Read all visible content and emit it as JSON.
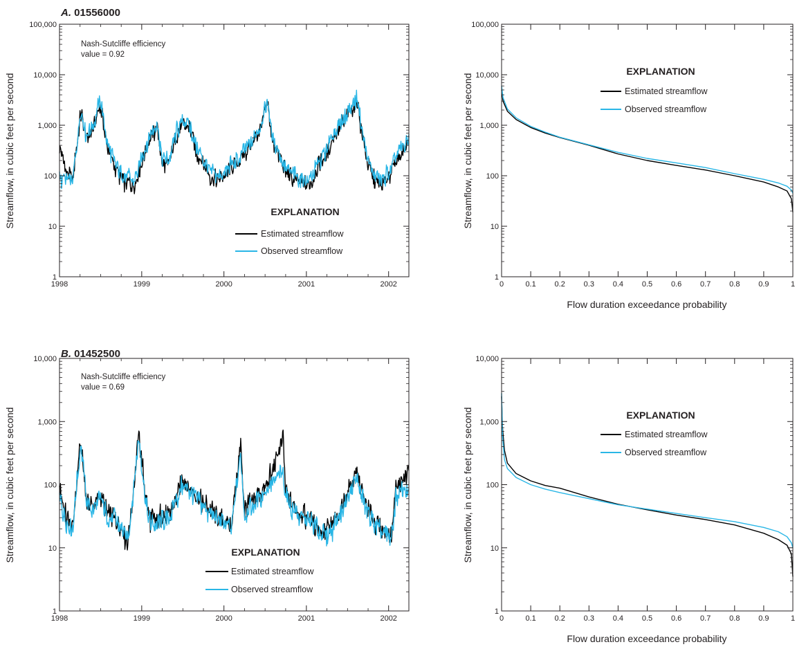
{
  "colors": {
    "estimated": "#000000",
    "observed": "#29b6e6",
    "axis": "#231f20"
  },
  "panels": [
    {
      "id": "A",
      "label_letter": "A.",
      "label_text": "01556000",
      "nse_line1": "Nash-Sutcliffe efficiency",
      "nse_line2": "value = 0.92",
      "legend_title": "EXPLANATION",
      "legend_estimated": "Estimated streamflow",
      "legend_observed": "Observed streamflow",
      "ylabel": "Streamflow, in cubic feet per second",
      "fdc_xlabel": "Flow duration exceedance probability"
    },
    {
      "id": "B",
      "label_letter": "B.",
      "label_text": "01452500",
      "nse_line1": "Nash-Sutcliffe efficiency",
      "nse_line2": "value = 0.69",
      "legend_title": "EXPLANATION",
      "legend_estimated": "Estimated streamflow",
      "legend_observed": "Observed streamflow",
      "ylabel": "Streamflow, in cubic feet per second",
      "fdc_xlabel": "Flow duration exceedance probability"
    }
  ],
  "chart_data": [
    {
      "type": "line",
      "panel": "A",
      "title": "A. 01556000",
      "xlabel": "",
      "ylabel": "Streamflow, in cubic feet per second",
      "yscale": "log",
      "ylim": [
        1,
        100000
      ],
      "xlim": [
        "1998-01-01",
        "2002-04-01"
      ],
      "xticks": [
        "1998",
        "1999",
        "2000",
        "2001",
        "2002"
      ],
      "yticks": [
        "1",
        "10",
        "100",
        "1,000",
        "10,000",
        "100,000"
      ],
      "legend": "center-bottom",
      "series": [
        {
          "name": "Estimated streamflow",
          "x": [
            "1998-01-01",
            "1998-02-01",
            "1998-03-01",
            "1998-04-05",
            "1998-05-01",
            "1998-06-01",
            "1998-07-01",
            "1998-08-01",
            "1998-09-01",
            "1998-10-01",
            "1998-11-01",
            "1998-12-01",
            "1999-01-15",
            "1999-02-01",
            "1999-03-10",
            "1999-04-01",
            "1999-05-01",
            "1999-06-01",
            "1999-07-01",
            "1999-08-01",
            "1999-09-01",
            "1999-10-01",
            "1999-11-01",
            "1999-12-01",
            "2000-01-15",
            "2000-02-01",
            "2000-03-01",
            "2000-04-01",
            "2000-05-01",
            "2000-06-01",
            "2000-07-15",
            "2000-08-01",
            "2000-09-01",
            "2000-10-01",
            "2000-11-01",
            "2000-12-01",
            "2001-01-15",
            "2001-02-01",
            "2001-03-01",
            "2001-04-01",
            "2001-05-01",
            "2001-06-01",
            "2001-07-01",
            "2001-08-15",
            "2001-09-01",
            "2001-10-01",
            "2001-11-01",
            "2001-12-01",
            "2002-01-15",
            "2002-02-01",
            "2002-03-15",
            "2002-04-01"
          ],
          "values": [
            400,
            110,
            80,
            1800,
            500,
            900,
            2600,
            380,
            150,
            95,
            70,
            65,
            300,
            450,
            1000,
            180,
            160,
            600,
            1100,
            900,
            300,
            180,
            100,
            80,
            110,
            140,
            160,
            280,
            400,
            700,
            2400,
            500,
            250,
            120,
            90,
            75,
            60,
            90,
            180,
            250,
            600,
            900,
            1500,
            2800,
            900,
            160,
            80,
            60,
            120,
            200,
            350,
            500
          ]
        },
        {
          "name": "Observed streamflow",
          "x": [
            "1998-01-01",
            "1998-02-01",
            "1998-03-01",
            "1998-04-05",
            "1998-05-01",
            "1998-06-01",
            "1998-07-01",
            "1998-08-01",
            "1998-09-01",
            "1998-10-01",
            "1998-11-01",
            "1998-12-01",
            "1999-01-15",
            "1999-02-01",
            "1999-03-10",
            "1999-04-01",
            "1999-05-01",
            "1999-06-01",
            "1999-07-01",
            "1999-08-01",
            "1999-09-01",
            "1999-10-01",
            "1999-11-01",
            "1999-12-01",
            "2000-01-15",
            "2000-02-01",
            "2000-03-01",
            "2000-04-01",
            "2000-05-01",
            "2000-06-01",
            "2000-07-15",
            "2000-08-01",
            "2000-09-01",
            "2000-10-01",
            "2000-11-01",
            "2000-12-01",
            "2001-01-15",
            "2001-02-01",
            "2001-03-01",
            "2001-04-01",
            "2001-05-01",
            "2001-06-01",
            "2001-07-01",
            "2001-08-15",
            "2001-09-01",
            "2001-10-01",
            "2001-11-01",
            "2001-12-01",
            "2002-01-15",
            "2002-02-01",
            "2002-03-15",
            "2002-04-01"
          ],
          "values": [
            90,
            85,
            75,
            2000,
            600,
            1000,
            3400,
            450,
            180,
            110,
            90,
            80,
            350,
            500,
            1200,
            220,
            200,
            700,
            1200,
            1000,
            350,
            220,
            120,
            95,
            120,
            160,
            190,
            320,
            450,
            800,
            3000,
            600,
            300,
            140,
            110,
            90,
            80,
            110,
            200,
            300,
            700,
            1000,
            1800,
            3500,
            1000,
            200,
            100,
            80,
            140,
            250,
            400,
            600
          ]
        }
      ]
    },
    {
      "type": "line",
      "panel": "A",
      "title": "",
      "xlabel": "Flow duration exceedance probability",
      "ylabel": "Streamflow, in cubic feet per second",
      "yscale": "log",
      "ylim": [
        1,
        100000
      ],
      "xlim": [
        0,
        1
      ],
      "xticks": [
        "0",
        "0.1",
        "0.2",
        "0.3",
        "0.4",
        "0.5",
        "0.6",
        "0.7",
        "0.8",
        "0.9",
        "1"
      ],
      "yticks": [
        "1",
        "10",
        "100",
        "1,000",
        "10,000",
        "100,000"
      ],
      "legend": "top-center",
      "series": [
        {
          "name": "Estimated streamflow",
          "x": [
            0,
            0.005,
            0.02,
            0.05,
            0.1,
            0.15,
            0.2,
            0.3,
            0.4,
            0.5,
            0.6,
            0.7,
            0.8,
            0.9,
            0.95,
            0.98,
            0.995,
            1.0
          ],
          "values": [
            5000,
            3000,
            1900,
            1300,
            900,
            700,
            570,
            400,
            270,
            200,
            160,
            130,
            100,
            75,
            60,
            50,
            35,
            19
          ]
        },
        {
          "name": "Observed streamflow",
          "x": [
            0,
            0.005,
            0.02,
            0.05,
            0.1,
            0.15,
            0.2,
            0.3,
            0.4,
            0.5,
            0.6,
            0.7,
            0.8,
            0.9,
            0.95,
            0.98,
            0.995,
            1.0
          ],
          "values": [
            6000,
            3500,
            2100,
            1400,
            950,
            730,
            580,
            410,
            290,
            220,
            180,
            145,
            110,
            85,
            72,
            62,
            52,
            45
          ]
        }
      ]
    },
    {
      "type": "line",
      "panel": "B",
      "title": "B. 01452500",
      "xlabel": "",
      "ylabel": "Streamflow, in cubic feet per second",
      "yscale": "log",
      "ylim": [
        1,
        10000
      ],
      "xlim": [
        "1998-01-01",
        "2002-04-01"
      ],
      "xticks": [
        "1998",
        "1999",
        "2000",
        "2001",
        "2002"
      ],
      "yticks": [
        "1",
        "10",
        "100",
        "1,000",
        "10,000"
      ],
      "legend": "center-bottom",
      "series": [
        {
          "name": "Estimated streamflow",
          "x": [
            "1998-01-01",
            "1998-02-01",
            "1998-03-01",
            "1998-04-05",
            "1998-05-01",
            "1998-06-01",
            "1998-07-01",
            "1998-08-01",
            "1998-09-01",
            "1998-10-01",
            "1998-11-01",
            "1998-12-20",
            "1999-01-15",
            "1999-02-01",
            "1999-03-10",
            "1999-04-01",
            "1999-05-01",
            "1999-06-01",
            "1999-07-01",
            "1999-08-01",
            "1999-09-01",
            "1999-10-01",
            "1999-11-01",
            "1999-12-01",
            "2000-01-15",
            "2000-02-01",
            "2000-03-15",
            "2000-04-01",
            "2000-05-01",
            "2000-06-01",
            "2000-07-15",
            "2000-09-20",
            "2000-10-01",
            "2000-11-01",
            "2000-12-01",
            "2001-01-15",
            "2001-02-01",
            "2001-03-01",
            "2001-04-01",
            "2001-05-01",
            "2001-06-01",
            "2001-07-01",
            "2001-08-15",
            "2001-09-01",
            "2001-10-01",
            "2001-11-01",
            "2001-12-01",
            "2002-01-15",
            "2002-02-01",
            "2002-03-15",
            "2002-04-01"
          ],
          "values": [
            90,
            28,
            22,
            500,
            60,
            45,
            70,
            35,
            30,
            22,
            12,
            650,
            80,
            30,
            25,
            35,
            30,
            60,
            130,
            90,
            70,
            50,
            40,
            30,
            25,
            20,
            420,
            40,
            50,
            70,
            100,
            540,
            80,
            45,
            35,
            30,
            25,
            20,
            18,
            25,
            40,
            70,
            160,
            80,
            40,
            25,
            20,
            15,
            100,
            130,
            140
          ]
        },
        {
          "name": "Observed streamflow",
          "x": [
            "1998-01-01",
            "1998-02-01",
            "1998-03-01",
            "1998-04-05",
            "1998-05-01",
            "1998-06-01",
            "1998-07-01",
            "1998-08-01",
            "1998-09-01",
            "1998-10-01",
            "1998-11-01",
            "1998-12-20",
            "1999-01-15",
            "1999-02-01",
            "1999-03-10",
            "1999-04-01",
            "1999-05-01",
            "1999-06-01",
            "1999-07-01",
            "1999-08-01",
            "1999-09-01",
            "1999-10-01",
            "1999-11-01",
            "1999-12-01",
            "2000-01-15",
            "2000-02-01",
            "2000-03-15",
            "2000-04-01",
            "2000-05-01",
            "2000-06-01",
            "2000-07-15",
            "2000-09-20",
            "2000-10-01",
            "2000-11-01",
            "2000-12-01",
            "2001-01-15",
            "2001-02-01",
            "2001-03-01",
            "2001-04-01",
            "2001-05-01",
            "2001-06-01",
            "2001-07-01",
            "2001-08-15",
            "2001-09-01",
            "2001-10-01",
            "2001-11-01",
            "2001-12-01",
            "2002-01-15",
            "2002-02-01",
            "2002-03-15",
            "2002-04-01"
          ],
          "values": [
            60,
            25,
            20,
            450,
            55,
            40,
            60,
            30,
            28,
            20,
            14,
            550,
            70,
            28,
            22,
            30,
            28,
            55,
            100,
            80,
            60,
            45,
            35,
            28,
            22,
            18,
            300,
            35,
            45,
            60,
            90,
            160,
            70,
            40,
            30,
            26,
            22,
            18,
            15,
            22,
            35,
            60,
            120,
            70,
            35,
            22,
            18,
            14,
            60,
            90,
            70
          ]
        }
      ]
    },
    {
      "type": "line",
      "panel": "B",
      "title": "",
      "xlabel": "Flow duration exceedance probability",
      "ylabel": "Streamflow, in cubic feet per second",
      "yscale": "log",
      "ylim": [
        1,
        10000
      ],
      "xlim": [
        0,
        1
      ],
      "xticks": [
        "0",
        "0.1",
        "0.2",
        "0.3",
        "0.4",
        "0.5",
        "0.6",
        "0.7",
        "0.8",
        "0.9",
        "1"
      ],
      "yticks": [
        "1",
        "10",
        "100",
        "1,000",
        "10,000"
      ],
      "legend": "top-center",
      "series": [
        {
          "name": "Estimated streamflow",
          "x": [
            0,
            0.003,
            0.01,
            0.02,
            0.05,
            0.1,
            0.15,
            0.2,
            0.3,
            0.4,
            0.5,
            0.6,
            0.7,
            0.8,
            0.9,
            0.95,
            0.98,
            0.995,
            1.0
          ],
          "values": [
            2500,
            800,
            350,
            220,
            150,
            115,
            97,
            88,
            64,
            49,
            40,
            33,
            28,
            23,
            17,
            13.5,
            11,
            8,
            3.5
          ]
        },
        {
          "name": "Observed streamflow",
          "x": [
            0,
            0.003,
            0.01,
            0.02,
            0.05,
            0.1,
            0.15,
            0.2,
            0.3,
            0.4,
            0.5,
            0.6,
            0.7,
            0.8,
            0.9,
            0.95,
            0.98,
            0.995,
            1.0
          ],
          "values": [
            2800,
            600,
            250,
            180,
            130,
            100,
            85,
            75,
            60,
            48,
            41,
            35,
            30,
            26,
            21,
            18,
            15,
            12,
            10
          ]
        }
      ]
    }
  ]
}
